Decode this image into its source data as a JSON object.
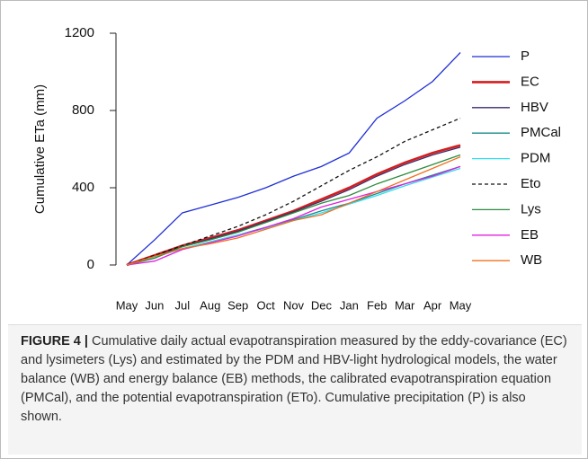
{
  "chart_data": {
    "type": "line",
    "ylabel": "Cumulative ETa (mm)",
    "categories": [
      "May",
      "Jun",
      "Jul",
      "Aug",
      "Sep",
      "Oct",
      "Nov",
      "Dec",
      "Jan",
      "Feb",
      "Mar",
      "Apr",
      "May"
    ],
    "ylim": [
      0,
      1200
    ],
    "yticks": [
      0,
      400,
      800,
      1200
    ],
    "series": [
      {
        "name": "P",
        "color": "#1f2fd6",
        "width": 1.3,
        "values": [
          0,
          130,
          270,
          310,
          350,
          400,
          460,
          510,
          580,
          760,
          850,
          950,
          1100
        ]
      },
      {
        "name": "EC",
        "color": "#d41e1e",
        "width": 2.6,
        "values": [
          0,
          50,
          100,
          140,
          180,
          230,
          280,
          340,
          400,
          470,
          530,
          580,
          620
        ]
      },
      {
        "name": "HBV",
        "color": "#3b2a6e",
        "width": 1.3,
        "values": [
          0,
          45,
          95,
          135,
          175,
          225,
          275,
          330,
          390,
          460,
          520,
          570,
          610
        ]
      },
      {
        "name": "PMCal",
        "color": "#1a8a8a",
        "width": 1.3,
        "values": [
          0,
          40,
          85,
          120,
          155,
          195,
          235,
          280,
          320,
          370,
          420,
          465,
          510
        ]
      },
      {
        "name": "PDM",
        "color": "#33ddee",
        "width": 1.3,
        "values": [
          0,
          40,
          85,
          120,
          155,
          190,
          230,
          270,
          315,
          360,
          410,
          455,
          500
        ]
      },
      {
        "name": "Eto",
        "color": "#111111",
        "width": 1.3,
        "dashed": true,
        "values": [
          0,
          50,
          100,
          150,
          200,
          260,
          330,
          410,
          490,
          560,
          640,
          700,
          760
        ]
      },
      {
        "name": "Lys",
        "color": "#2e8b3e",
        "width": 1.3,
        "values": [
          0,
          35,
          95,
          130,
          170,
          220,
          270,
          320,
          360,
          420,
          470,
          520,
          570
        ]
      },
      {
        "name": "EB",
        "color": "#e020e0",
        "width": 1.3,
        "values": [
          0,
          20,
          80,
          115,
          150,
          195,
          240,
          300,
          340,
          380,
          420,
          460,
          510
        ]
      },
      {
        "name": "WB",
        "color": "#f07020",
        "width": 1.3,
        "values": [
          0,
          45,
          85,
          110,
          140,
          185,
          230,
          260,
          320,
          380,
          440,
          500,
          560
        ]
      }
    ]
  },
  "caption": {
    "label": "FIGURE 4 |",
    "text": "Cumulative daily actual evapotranspiration measured by the eddy-covariance (EC) and lysimeters (Lys) and estimated by the PDM and HBV-light hydrological models, the water balance (WB) and energy balance (EB) methods, the calibrated evapotranspiration equation (PMCal), and the potential evapotranspiration (ETo). Cumulative precipitation (P) is also shown."
  }
}
